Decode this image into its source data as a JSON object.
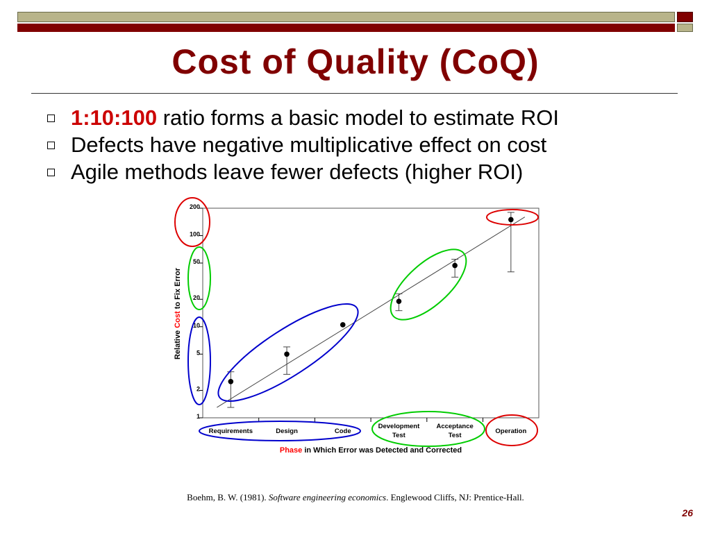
{
  "slide": {
    "title": "Cost of Quality (CoQ)",
    "bullets": [
      {
        "highlight": "1:10:100",
        "text": " ratio forms a basic model to estimate ROI"
      },
      {
        "highlight": "",
        "text": "Defects have negative multiplicative effect on cost"
      },
      {
        "highlight": "",
        "text": "Agile methods leave fewer defects (higher ROI)"
      }
    ],
    "citation": {
      "prefix": "Boehm, B. W. (1981). ",
      "italic": "Software engineering economics",
      "suffix": ". Englewood Cliffs, NJ: Prentice-Hall."
    },
    "page_number": "26",
    "colors": {
      "title": "#800000",
      "accent": "#cc0000",
      "bar_red": "#800000",
      "bar_olive": "#b8b48a"
    }
  },
  "chart_data": {
    "type": "scatter",
    "scale": "log",
    "categories": [
      "Requirements",
      "Design",
      "Code",
      "Development Test",
      "Acceptance Test",
      "Operation"
    ],
    "category_lines": [
      [
        "Requirements"
      ],
      [
        "Design"
      ],
      [
        "Code"
      ],
      [
        "Development",
        "Test"
      ],
      [
        "Acceptance",
        "Test"
      ],
      [
        "Operation"
      ]
    ],
    "values": [
      2.5,
      5,
      10.5,
      19,
      47,
      150
    ],
    "error_low": [
      1.3,
      3,
      10.5,
      15,
      35,
      40
    ],
    "error_high": [
      3.2,
      6,
      10.5,
      23,
      55,
      180
    ],
    "trend_line": {
      "start_value": 1.3,
      "end_value": 160
    },
    "y_ticks": [
      1,
      2,
      5,
      10,
      20,
      50,
      100,
      200
    ],
    "ylim": [
      1,
      200
    ],
    "ylabel": {
      "prefix": "Relative ",
      "highlight": "Cost",
      "suffix": " to Fix Error"
    },
    "xlabel": {
      "highlight": "Phase",
      "suffix": " in Which Error was Detected and Corrected"
    },
    "highlight_color": "#ff0000",
    "groups": [
      {
        "color": "#0000cc",
        "members": [
          0,
          1,
          2
        ],
        "y_ticks": [
          2,
          5,
          10
        ]
      },
      {
        "color": "#00cc00",
        "members": [
          3,
          4
        ],
        "y_ticks": [
          20,
          50
        ]
      },
      {
        "color": "#dd0000",
        "members": [
          5
        ],
        "y_ticks": [
          100,
          200
        ]
      }
    ]
  }
}
